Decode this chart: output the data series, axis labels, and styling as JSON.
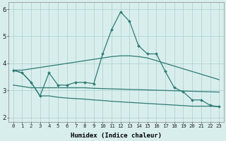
{
  "x": [
    0,
    1,
    2,
    3,
    4,
    5,
    6,
    7,
    8,
    9,
    10,
    11,
    12,
    13,
    14,
    15,
    16,
    17,
    18,
    19,
    20,
    21,
    22,
    23
  ],
  "line_spike": [
    3.75,
    3.65,
    3.3,
    2.8,
    3.65,
    3.2,
    3.2,
    3.3,
    3.3,
    3.25,
    4.35,
    5.25,
    5.9,
    5.55,
    4.65,
    4.35,
    4.35,
    3.7,
    3.1,
    2.95,
    2.65,
    2.65,
    2.45,
    2.4
  ],
  "line_upper": [
    3.75,
    3.75,
    3.8,
    3.85,
    3.9,
    3.95,
    4.0,
    4.05,
    4.1,
    4.15,
    4.2,
    4.25,
    4.28,
    4.28,
    4.25,
    4.2,
    4.1,
    4.0,
    3.9,
    3.8,
    3.7,
    3.6,
    3.5,
    3.4
  ],
  "line_mid": [
    3.2,
    3.15,
    3.1,
    3.1,
    3.1,
    3.1,
    3.1,
    3.1,
    3.1,
    3.08,
    3.07,
    3.06,
    3.05,
    3.04,
    3.03,
    3.02,
    3.01,
    3.0,
    2.99,
    2.98,
    2.97,
    2.96,
    2.95,
    2.94
  ],
  "line_lower": [
    3.75,
    3.65,
    3.3,
    2.8,
    2.8,
    2.75,
    2.72,
    2.7,
    2.68,
    2.65,
    2.63,
    2.6,
    2.58,
    2.56,
    2.54,
    2.52,
    2.5,
    2.48,
    2.46,
    2.44,
    2.42,
    2.42,
    2.42,
    2.4
  ],
  "bg_color": "#d8eeed",
  "line_color": "#2e7b74",
  "grid_color": "#aacfce",
  "ylabel_ticks": [
    2,
    3,
    4,
    5,
    6
  ],
  "xlabel": "Humidex (Indice chaleur)",
  "ylim": [
    1.85,
    6.25
  ],
  "xlim": [
    -0.5,
    23.5
  ]
}
